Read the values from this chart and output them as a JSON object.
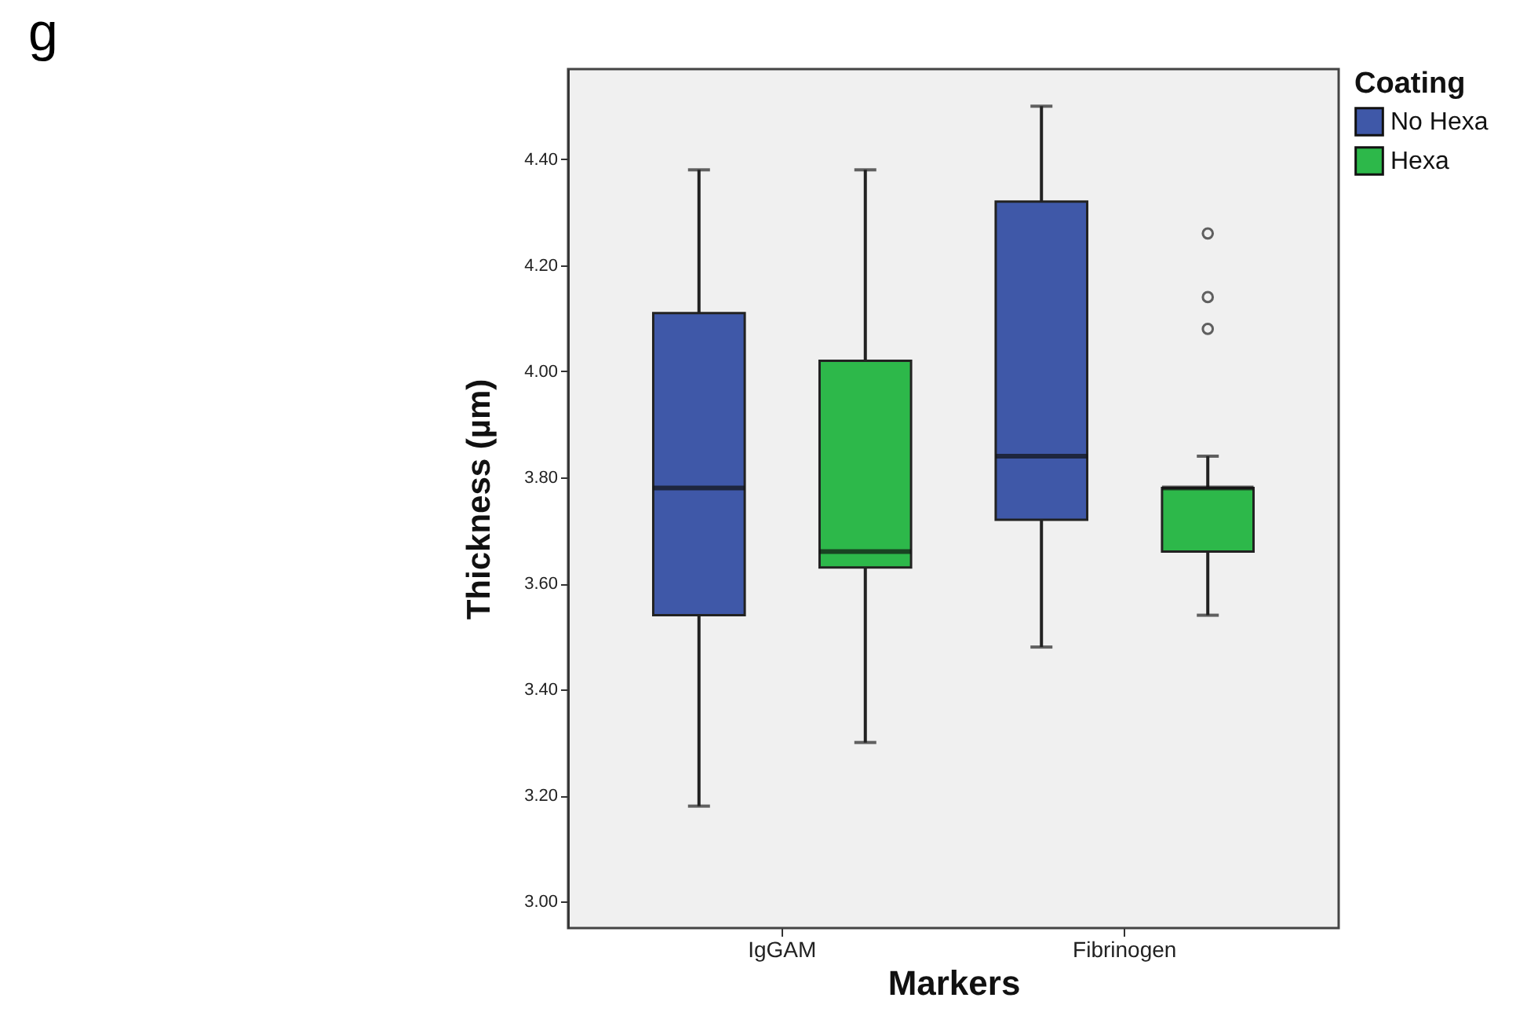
{
  "chart_data": {
    "type": "box",
    "xlabel": "Markers",
    "ylabel": "Thickness (µm)",
    "legend_title": "Coating",
    "annotations": [
      "g"
    ],
    "categories": [
      "IgGAM",
      "Fibrinogen"
    ],
    "ylim": [
      2.95,
      4.57
    ],
    "yticks": [
      {
        "value": 3,
        "label": "3.00"
      },
      {
        "value": 3.2,
        "label": "3.20"
      },
      {
        "value": 3.4,
        "label": "3.40"
      },
      {
        "value": 3.6,
        "label": "3.60"
      },
      {
        "value": 3.8,
        "label": "3.80"
      },
      {
        "value": 4,
        "label": "4.00"
      },
      {
        "value": 4.2,
        "label": "4.20"
      },
      {
        "value": 4.4,
        "label": "4.40"
      }
    ],
    "grid": false,
    "legend": "top right",
    "series": [
      {
        "name": "No Hexa",
        "color": "#3f58a8",
        "boxes": [
          {
            "low": 3.18,
            "q1": 3.54,
            "median": 3.78,
            "q3": 4.11,
            "high": 4.38
          },
          {
            "low": 3.48,
            "q1": 3.72,
            "median": 3.84,
            "q3": 4.32,
            "high": 4.5
          }
        ]
      },
      {
        "name": "Hexa",
        "color": "#2db84a",
        "boxes": [
          {
            "low": 3.3,
            "q1": 3.63,
            "median": 3.66,
            "q3": 4.02,
            "high": 4.38
          },
          {
            "low": 3.54,
            "q1": 3.66,
            "median": 3.78,
            "q3": 3.78,
            "high": 3.84,
            "outliers": [
              4.26,
              4.14,
              4.08
            ]
          }
        ]
      }
    ]
  }
}
